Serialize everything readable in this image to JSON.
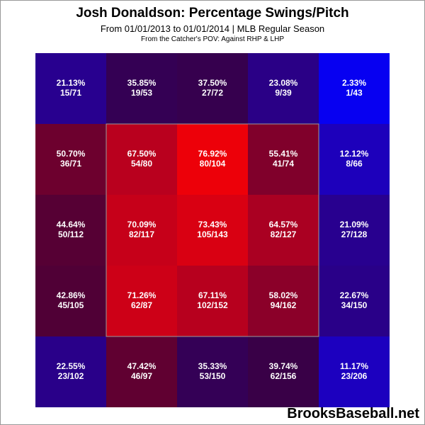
{
  "chart_data": {
    "type": "heatmap",
    "title": "Josh Donaldson: Percentage Swings/Pitch",
    "subtitle": "From 01/01/2013 to 01/01/2014 | MLB Regular Season",
    "note": "From the Catcher's POV:  Against RHP & LHP",
    "rows": [
      [
        {
          "pct": "21.13%",
          "count": "15/71",
          "value": 21.13
        },
        {
          "pct": "35.85%",
          "count": "19/53",
          "value": 35.85
        },
        {
          "pct": "37.50%",
          "count": "27/72",
          "value": 37.5
        },
        {
          "pct": "23.08%",
          "count": "9/39",
          "value": 23.08
        },
        {
          "pct": "2.33%",
          "count": "1/43",
          "value": 2.33
        }
      ],
      [
        {
          "pct": "50.70%",
          "count": "36/71",
          "value": 50.7
        },
        {
          "pct": "67.50%",
          "count": "54/80",
          "value": 67.5
        },
        {
          "pct": "76.92%",
          "count": "80/104",
          "value": 76.92
        },
        {
          "pct": "55.41%",
          "count": "41/74",
          "value": 55.41
        },
        {
          "pct": "12.12%",
          "count": "8/66",
          "value": 12.12
        }
      ],
      [
        {
          "pct": "44.64%",
          "count": "50/112",
          "value": 44.64
        },
        {
          "pct": "70.09%",
          "count": "82/117",
          "value": 70.09
        },
        {
          "pct": "73.43%",
          "count": "105/143",
          "value": 73.43
        },
        {
          "pct": "64.57%",
          "count": "82/127",
          "value": 64.57
        },
        {
          "pct": "21.09%",
          "count": "27/128",
          "value": 21.09
        }
      ],
      [
        {
          "pct": "42.86%",
          "count": "45/105",
          "value": 42.86
        },
        {
          "pct": "71.26%",
          "count": "62/87",
          "value": 71.26
        },
        {
          "pct": "67.11%",
          "count": "102/152",
          "value": 67.11
        },
        {
          "pct": "58.02%",
          "count": "94/162",
          "value": 58.02
        },
        {
          "pct": "22.67%",
          "count": "34/150",
          "value": 22.67
        }
      ],
      [
        {
          "pct": "22.55%",
          "count": "23/102",
          "value": 22.55
        },
        {
          "pct": "47.42%",
          "count": "46/97",
          "value": 47.42
        },
        {
          "pct": "35.33%",
          "count": "53/150",
          "value": 35.33
        },
        {
          "pct": "39.74%",
          "count": "62/156",
          "value": 39.74
        },
        {
          "pct": "11.17%",
          "count": "23/206",
          "value": 11.17
        }
      ]
    ],
    "strike_zone": {
      "rows": [
        1,
        3
      ],
      "cols": [
        1,
        3
      ]
    },
    "color_scale": {
      "low": "#0000ff",
      "high": "#ff0000",
      "min": 0,
      "max": 80
    }
  },
  "watermark": "BrooksBaseball.net"
}
